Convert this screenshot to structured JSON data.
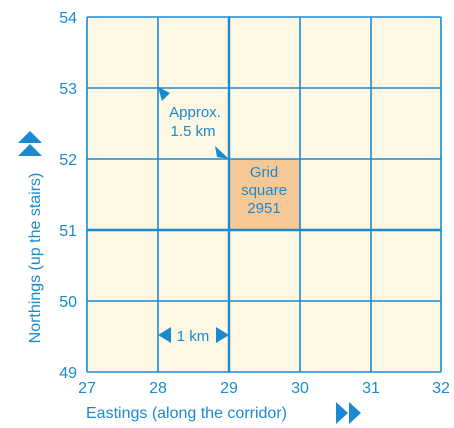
{
  "grid": {
    "eastings": [
      "27",
      "28",
      "29",
      "30",
      "31",
      "32"
    ],
    "northings": [
      "49",
      "50",
      "51",
      "52",
      "53",
      "54"
    ]
  },
  "axes": {
    "x_label": "Eastings (along the corridor)",
    "y_label": "Northings (up the stairs)"
  },
  "highlight": {
    "line1": "Grid",
    "line2": "square",
    "line3": "2951"
  },
  "annotations": {
    "approx_line1": "Approx.",
    "approx_line2": "1.5 km",
    "one_km": "1 km"
  },
  "colors": {
    "line": "#1a8ad0",
    "cell_fill": "#fdf7e3",
    "highlight_fill": "#f6c896",
    "text": "#1a8ad0"
  }
}
